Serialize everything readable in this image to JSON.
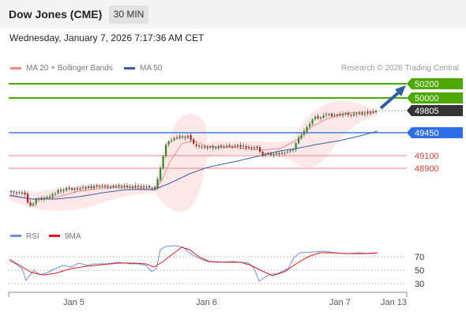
{
  "header": {
    "instrument": "Dow Jones (CME)",
    "timeframe": "30 MIN"
  },
  "datetime": "Wednesday, January 7, 2026 7:17:36 AM CET",
  "legend": [
    {
      "label": "MA 20 + Bollinger Bands",
      "color": "#f08b8b"
    },
    {
      "label": "MA 50",
      "color": "#3a5ea8"
    }
  ],
  "credit": "Research © 2026 Trading Central",
  "levels": [
    {
      "value": "50200",
      "style": "green-tag"
    },
    {
      "value": "50000",
      "style": "green-tag"
    },
    {
      "value": "49805",
      "style": "dark-tag"
    },
    {
      "value": "49450",
      "style": "blue-tag"
    },
    {
      "value": "49100",
      "style": "red-text"
    },
    {
      "value": "48900",
      "style": "red-text"
    }
  ],
  "rsi_legend": [
    {
      "label": "RSI",
      "color": "#6a8fe0"
    },
    {
      "label": "9MA",
      "color": "#e01a1a"
    }
  ],
  "rsi_levels": [
    "70",
    "50",
    "30"
  ],
  "x_labels": [
    "Jan 5",
    "Jan 6",
    "Jan 7",
    "Jan 13"
  ],
  "colors": {
    "up": "#2e8b2e",
    "down": "#b22222",
    "support": "#e23b3b",
    "resistance": "#4da800",
    "pivot": "#3a7ee8"
  }
}
